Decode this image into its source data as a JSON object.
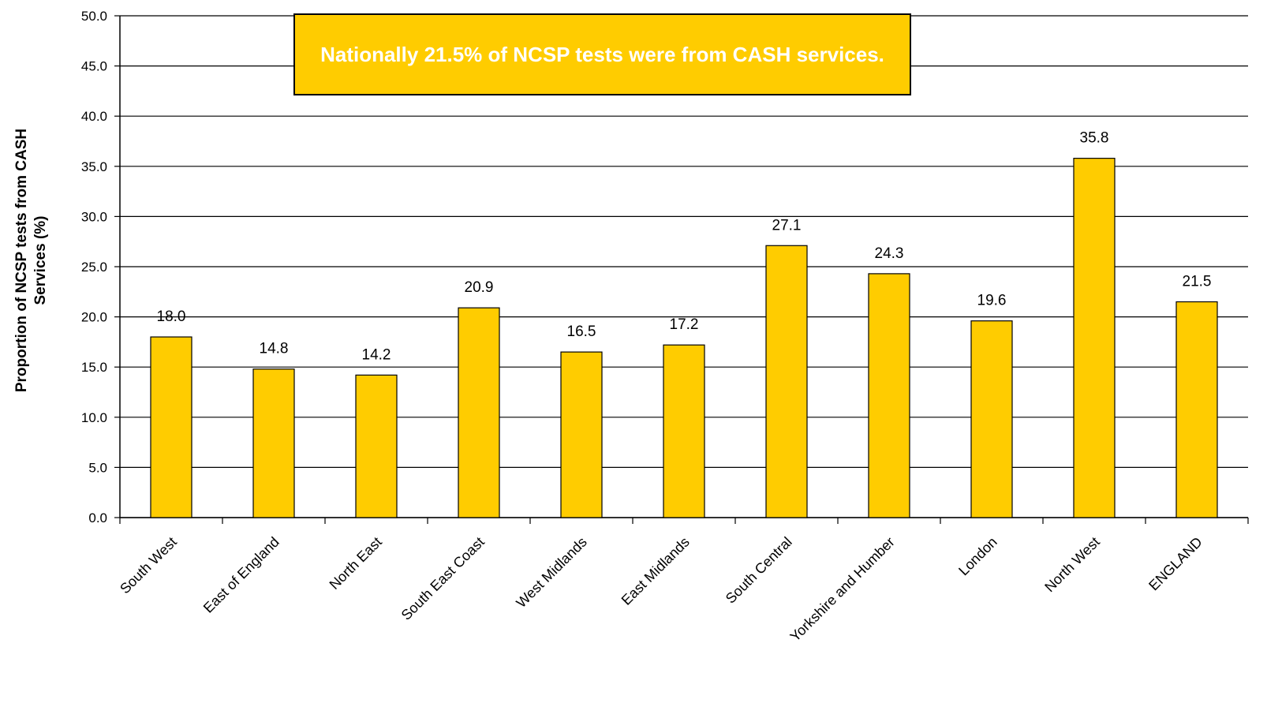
{
  "chart_data": {
    "type": "bar",
    "annotation": "Nationally 21.5% of NCSP tests were from CASH services.",
    "y_label": "Proportion of NCSP tests from CASH Services (%)",
    "categories": [
      "South West",
      "East of England",
      "North East",
      "South East Coast",
      "West Midlands",
      "East Midlands",
      "South Central",
      "Yorkshire and Humber",
      "London",
      "North West",
      "ENGLAND"
    ],
    "values": [
      18.0,
      14.8,
      14.2,
      20.9,
      16.5,
      17.2,
      27.1,
      24.3,
      19.6,
      35.8,
      21.5
    ],
    "value_labels": [
      "18.0",
      "14.8",
      "14.2",
      "20.9",
      "16.5",
      "17.2",
      "27.1",
      "24.3",
      "19.6",
      "35.8",
      "21.5"
    ],
    "color": "#ffcc00",
    "ylim": [
      0,
      50
    ],
    "yticks": [
      {
        "value": 0,
        "label": "0.0"
      },
      {
        "value": 5,
        "label": "5.0"
      },
      {
        "value": 10,
        "label": "10.0"
      },
      {
        "value": 15,
        "label": "15.0"
      },
      {
        "value": 20,
        "label": "20.0"
      },
      {
        "value": 25,
        "label": "25.0"
      },
      {
        "value": 30,
        "label": "30.0"
      },
      {
        "value": 35,
        "label": "35.0"
      },
      {
        "value": 40,
        "label": "40.0"
      },
      {
        "value": 45,
        "label": "45.0"
      },
      {
        "value": 50,
        "label": "50.0"
      }
    ],
    "grid": true
  }
}
